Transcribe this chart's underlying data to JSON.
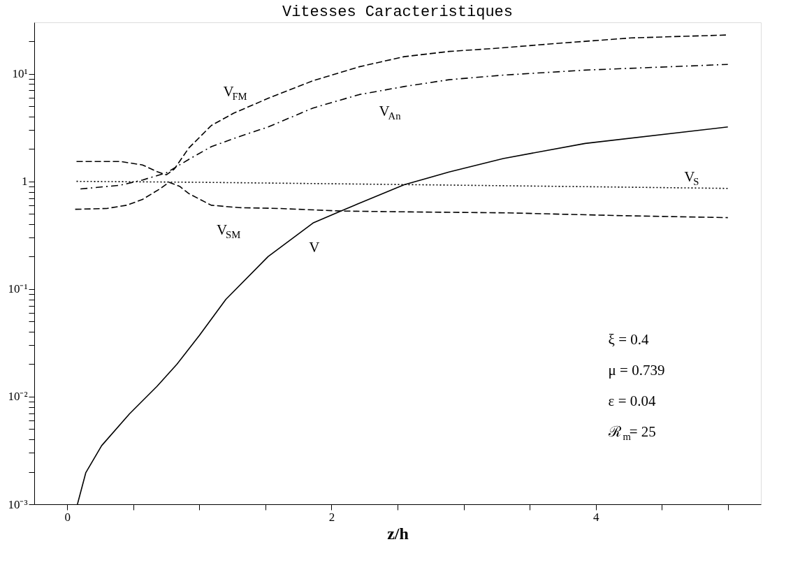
{
  "chart_data": {
    "type": "line",
    "title": "Vitesses Caracteristiques",
    "xlabel": "z/h",
    "xlim": [
      -0.25,
      5.25
    ],
    "xticks": [
      0,
      {
        "value": 0.5,
        "label": null
      },
      {
        "value": 1,
        "label": null
      },
      {
        "value": 1.5,
        "label": null
      },
      2,
      {
        "value": 2.5,
        "label": null
      },
      {
        "value": 3,
        "label": null
      },
      {
        "value": 3.5,
        "label": null
      },
      4,
      {
        "value": 4.5,
        "label": null
      },
      {
        "value": 5,
        "label": null
      }
    ],
    "ylim": [
      0.001,
      30
    ],
    "log": "y",
    "yticks": [
      {
        "value": 0.001,
        "label": "10⁻³"
      },
      {
        "value": 0.002,
        "label": null
      },
      {
        "value": 0.003,
        "label": null
      },
      {
        "value": 0.004,
        "label": null
      },
      {
        "value": 0.005,
        "label": null
      },
      {
        "value": 0.006,
        "label": null
      },
      {
        "value": 0.007,
        "label": null
      },
      {
        "value": 0.008,
        "label": null
      },
      {
        "value": 0.009,
        "label": null
      },
      {
        "value": 0.01,
        "label": "10⁻²"
      },
      {
        "value": 0.02,
        "label": null
      },
      {
        "value": 0.03,
        "label": null
      },
      {
        "value": 0.04,
        "label": null
      },
      {
        "value": 0.05,
        "label": null
      },
      {
        "value": 0.06,
        "label": null
      },
      {
        "value": 0.07,
        "label": null
      },
      {
        "value": 0.08,
        "label": null
      },
      {
        "value": 0.09,
        "label": null
      },
      {
        "value": 0.1,
        "label": "10⁻¹"
      },
      {
        "value": 0.2,
        "label": null
      },
      {
        "value": 0.3,
        "label": null
      },
      {
        "value": 0.4,
        "label": null
      },
      {
        "value": 0.5,
        "label": null
      },
      {
        "value": 0.6,
        "label": null
      },
      {
        "value": 0.7,
        "label": null
      },
      {
        "value": 0.8,
        "label": null
      },
      {
        "value": 0.9,
        "label": null
      },
      1,
      {
        "value": 2,
        "label": null
      },
      {
        "value": 3,
        "label": null
      },
      {
        "value": 4,
        "label": null
      },
      {
        "value": 5,
        "label": null
      },
      {
        "value": 6,
        "label": null
      },
      {
        "value": 7,
        "label": null
      },
      {
        "value": 8,
        "label": null
      },
      {
        "value": 9,
        "label": null
      },
      {
        "value": 10,
        "label": "10¹"
      },
      {
        "value": 20,
        "label": null
      }
    ],
    "grid": false,
    "legend": false,
    "marker": "none",
    "series": [
      {
        "name": "V",
        "color": "#000000",
        "line_style": "solid",
        "x": [
          0.077,
          0.14,
          0.26,
          0.47,
          0.68,
          0.83,
          1.0,
          1.2,
          1.52,
          1.86,
          2.07,
          2.55,
          2.89,
          3.3,
          3.92,
          5.0
        ],
        "values": [
          0.001,
          0.00196,
          0.0035,
          0.0069,
          0.0125,
          0.02,
          0.037,
          0.08,
          0.2,
          0.41,
          0.53,
          0.93,
          1.22,
          1.63,
          2.25,
          3.2
        ]
      },
      {
        "name": "V$_{S}$",
        "color": "#000000",
        "line_style": "dotted",
        "x": [
          0.07,
          1.0,
          2.0,
          3.0,
          4.0,
          5.0
        ],
        "values": [
          1.0,
          0.98,
          0.95,
          0.92,
          0.89,
          0.86
        ]
      },
      {
        "name": "V$_{SM}$",
        "color": "#000000",
        "line_style": "dashed",
        "x": [
          0.06,
          0.3,
          0.45,
          0.57,
          0.7,
          0.77,
          0.85,
          0.92,
          1.09,
          1.3,
          1.6,
          2.07,
          2.6,
          3.32,
          4.2,
          5.0
        ],
        "values": [
          0.55,
          0.56,
          0.6,
          0.68,
          0.85,
          0.98,
          0.9,
          0.77,
          0.6,
          0.57,
          0.56,
          0.53,
          0.52,
          0.51,
          0.48,
          0.46
        ]
      },
      {
        "name": "V$_{FM}$",
        "color": "#000000",
        "line_style": "dashed",
        "x": [
          0.07,
          0.4,
          0.57,
          0.68,
          0.75,
          0.81,
          0.92,
          1.09,
          1.26,
          1.52,
          1.86,
          2.21,
          2.55,
          2.89,
          3.24,
          3.75,
          4.27,
          5.0
        ],
        "values": [
          1.53,
          1.53,
          1.42,
          1.23,
          1.15,
          1.3,
          2.04,
          3.3,
          4.3,
          5.9,
          8.6,
          11.6,
          14.4,
          16.1,
          17.2,
          19.3,
          21.5,
          22.9
        ]
      },
      {
        "name": "V$_{An}$",
        "color": "#000000",
        "line_style": "dashdot",
        "x": [
          0.1,
          0.4,
          0.57,
          0.75,
          0.92,
          1.09,
          1.3,
          1.52,
          1.86,
          2.21,
          2.55,
          2.89,
          3.3,
          3.92,
          5.0
        ],
        "values": [
          0.85,
          0.92,
          1.03,
          1.2,
          1.6,
          2.1,
          2.6,
          3.2,
          4.8,
          6.4,
          7.6,
          8.8,
          9.7,
          10.8,
          12.2
        ]
      }
    ],
    "annotations": [
      "ξ = 0.4",
      "μ = 0.739",
      "ε = 0.04",
      "ℛ$_{m}$= 25"
    ]
  }
}
